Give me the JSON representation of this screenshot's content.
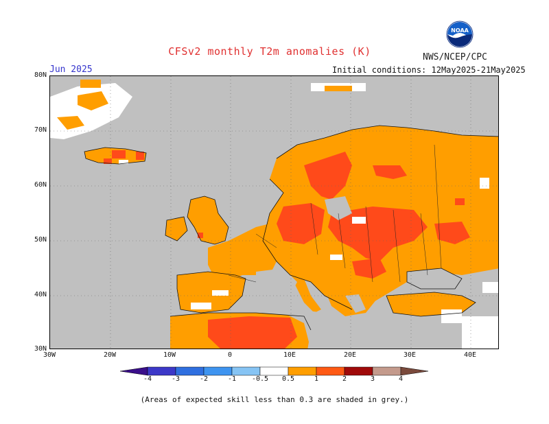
{
  "header": {
    "title": "CFSv2 monthly T2m anomalies (K)",
    "agency": "NWS/NCEP/CPC",
    "month": "Jun 2025",
    "initial_conditions": "Initial conditions: 12May2025-21May2025"
  },
  "logo": {
    "label": "NOAA",
    "icon": "noaa-logo-icon"
  },
  "axes": {
    "y_labels": [
      "80N",
      "70N",
      "60N",
      "50N",
      "40N",
      "30N"
    ],
    "x_labels": [
      "30W",
      "20W",
      "10W",
      "0",
      "10E",
      "20E",
      "30E",
      "40E"
    ]
  },
  "colorbar": {
    "ticks": [
      "-4",
      "-3",
      "-2",
      "-1",
      "-0.5",
      "0.5",
      "1",
      "2",
      "3",
      "4"
    ],
    "colors": [
      "#3a0f8a",
      "#3c38c8",
      "#2f6fe0",
      "#3e94f0",
      "#86c4f4",
      "#ffffff",
      "#ff9e00",
      "#ff5a14",
      "#e8180c",
      "#a00a0a",
      "#c49a8c",
      "#7a4a3c"
    ]
  },
  "legend_colors": {
    "land_no_skill": "#c0c0c0",
    "weak_warm": "#ff9e00",
    "moderate_warm": "#ff4a1a",
    "neutral": "#ffffff"
  },
  "footnote": "(Areas of expected skill less than 0.3 are shaded in grey.)"
}
